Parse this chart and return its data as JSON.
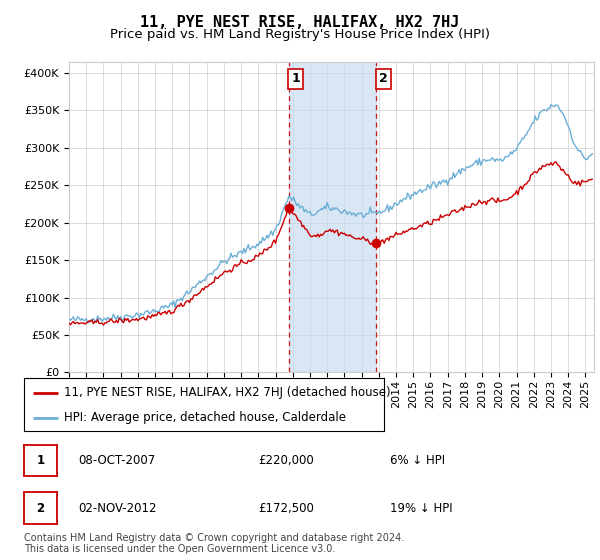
{
  "title": "11, PYE NEST RISE, HALIFAX, HX2 7HJ",
  "subtitle": "Price paid vs. HM Land Registry's House Price Index (HPI)",
  "ylabel_ticks": [
    "£0",
    "£50K",
    "£100K",
    "£150K",
    "£200K",
    "£250K",
    "£300K",
    "£350K",
    "£400K"
  ],
  "ytick_values": [
    0,
    50000,
    100000,
    150000,
    200000,
    250000,
    300000,
    350000,
    400000
  ],
  "ylim": [
    0,
    415000
  ],
  "xlim_start": 1995.0,
  "xlim_end": 2025.5,
  "sale1_x": 2007.77,
  "sale1_y": 220000,
  "sale1_label": "1",
  "sale2_x": 2012.84,
  "sale2_y": 172500,
  "sale2_label": "2",
  "shade_x1": 2007.77,
  "shade_x2": 2012.84,
  "legend1_label": "11, PYE NEST RISE, HALIFAX, HX2 7HJ (detached house)",
  "legend2_label": "HPI: Average price, detached house, Calderdale",
  "table_rows": [
    {
      "num": "1",
      "date": "08-OCT-2007",
      "price": "£220,000",
      "hpi": "6% ↓ HPI"
    },
    {
      "num": "2",
      "date": "02-NOV-2012",
      "price": "£172,500",
      "hpi": "19% ↓ HPI"
    }
  ],
  "footnote": "Contains HM Land Registry data © Crown copyright and database right 2024.\nThis data is licensed under the Open Government Licence v3.0.",
  "hpi_color": "#6baed6",
  "sale_color": "#cc0000",
  "shade_color": "#c6dbef",
  "marker_color": "#cc0000",
  "grid_color": "#cccccc",
  "background_color": "#ffffff",
  "plot_bg_color": "#ffffff",
  "title_fontsize": 11,
  "subtitle_fontsize": 9.5,
  "tick_fontsize": 8,
  "legend_fontsize": 8.5,
  "table_fontsize": 8.5,
  "footnote_fontsize": 7
}
